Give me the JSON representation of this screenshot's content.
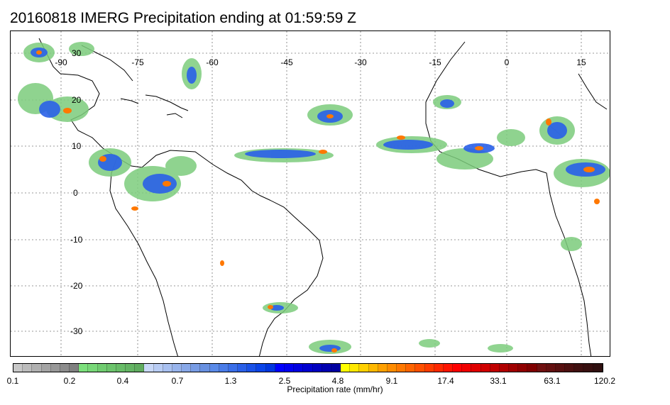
{
  "title": "20160818 IMERG Precipitation ending at 01:59:59 Z",
  "map": {
    "lon_labels": [
      "-90",
      "-75",
      "-60",
      "-45",
      "-30",
      "-15",
      "0",
      "15"
    ],
    "lat_labels": [
      "30",
      "20",
      "10",
      "0",
      "-10",
      "-20",
      "-30"
    ]
  },
  "colorbar": {
    "title": "Precipitation rate (mm/hr)",
    "labels": [
      "0.1",
      "0.2",
      "0.4",
      "0.7",
      "1.3",
      "2.5",
      "4.8",
      "9.1",
      "17.4",
      "33.1",
      "63.1",
      "120.2"
    ],
    "colors": [
      "#c8c8c8",
      "#bcbcbc",
      "#b0b0b0",
      "#a4a4a4",
      "#989898",
      "#8c8c8c",
      "#808080",
      "#7ce07c",
      "#78d878",
      "#70cc70",
      "#6cc46c",
      "#68bc68",
      "#64b464",
      "#60ac60",
      "#c8d8f8",
      "#b8ccf4",
      "#a8c0f0",
      "#98b4ec",
      "#88a8e8",
      "#789ce4",
      "#6890e0",
      "#5a8ae8",
      "#4a7ce8",
      "#3a6ee8",
      "#2a60e8",
      "#1a52e8",
      "#0a44e8",
      "#0036e0",
      "#0000ff",
      "#0000f0",
      "#0000e0",
      "#0000d0",
      "#0000c0",
      "#0000b0",
      "#0000a0",
      "#ffff00",
      "#ffe800",
      "#ffd000",
      "#ffb800",
      "#ffa000",
      "#ff8c00",
      "#ff7800",
      "#ff6400",
      "#ff5000",
      "#ff3c00",
      "#ff2800",
      "#ff1400",
      "#ff0000",
      "#f00000",
      "#e00000",
      "#d00000",
      "#c00000",
      "#b00000",
      "#a00000",
      "#900000",
      "#800000",
      "#701010",
      "#641010",
      "#581010",
      "#4c1010",
      "#401010",
      "#381010",
      "#301010"
    ]
  }
}
